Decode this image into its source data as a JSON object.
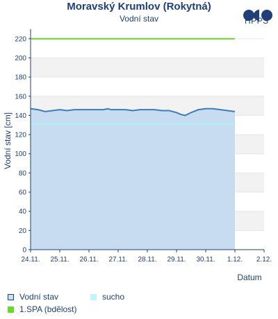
{
  "header": {
    "title": "Moravský Krumlov (Rokytná)",
    "subtitle": "Vodní stav",
    "logo_text": "HPPS"
  },
  "legend": {
    "items": [
      {
        "name": "Vodní stav",
        "swatch_fill": "#c9dff3",
        "swatch_border": "#1f3f7a"
      },
      {
        "name": "sucho",
        "swatch_fill": "#bff5fb",
        "swatch_border": "#bff5fb"
      },
      {
        "name": "1.SPA (bdělost)",
        "swatch_fill": "#66dd22",
        "swatch_border": "#66dd22"
      }
    ]
  },
  "colors": {
    "water_fill": "#c7dcf1",
    "water_line": "#3b7bc0",
    "sucho_line": "#a8f2fa",
    "spa_line": "#66dd22",
    "band": "#f2f2f2",
    "axis": "#1f3f7a"
  },
  "chart_data": {
    "type": "area",
    "xlabel": "Datum",
    "ylabel": "Vodní stav [cm]",
    "ylim": [
      0,
      230
    ],
    "yticks": [
      0,
      20,
      40,
      60,
      80,
      100,
      120,
      140,
      160,
      180,
      200,
      220
    ],
    "xlim": [
      "24.11.",
      "2.12."
    ],
    "xtick_labels": [
      "24.11.",
      "25.11.",
      "26.11.",
      "27.11.",
      "28.11.",
      "29.11.",
      "30.11.",
      "1.12.",
      "2.12."
    ],
    "grid": "horizontal bands",
    "series": [
      {
        "name": "Vodní stav",
        "x_days": [
          0,
          0.25,
          0.5,
          0.75,
          1.0,
          1.25,
          1.5,
          1.75,
          2.0,
          2.25,
          2.5,
          2.65,
          2.75,
          3.0,
          3.25,
          3.5,
          3.75,
          4.0,
          4.25,
          4.5,
          4.75,
          5.0,
          5.15,
          5.3,
          5.5,
          5.75,
          6.0,
          6.25,
          6.5,
          6.75,
          7.0
        ],
        "values": [
          147,
          146,
          144,
          145,
          146,
          145,
          146,
          146,
          146,
          146,
          146,
          147,
          146,
          146,
          146,
          145,
          146,
          146,
          146,
          145,
          145,
          143,
          141,
          140,
          143,
          146,
          147,
          147,
          146,
          145,
          144
        ]
      },
      {
        "name": "sucho",
        "value": 131
      },
      {
        "name": "1.SPA (bdělost)",
        "value": 220
      }
    ]
  }
}
